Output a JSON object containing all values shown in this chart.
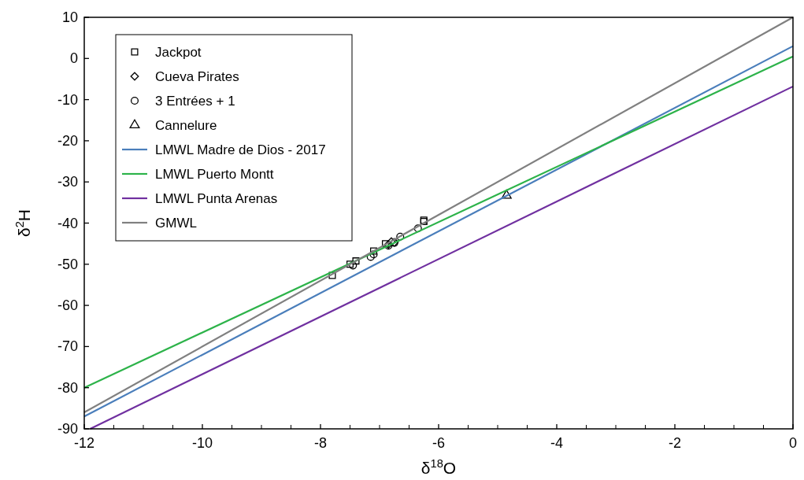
{
  "chart_data": {
    "type": "scatter",
    "xlabel": "δ$^{18}$O",
    "ylabel": "δ$^{2}$H",
    "xlim": [
      -12,
      0
    ],
    "ylim": [
      -90,
      10
    ],
    "xticks": [
      -12,
      -10,
      -8,
      -6,
      -4,
      -2,
      0
    ],
    "yticks": [
      -90,
      -80,
      -70,
      -60,
      -50,
      -40,
      -30,
      -20,
      -10,
      0,
      10
    ],
    "legend": "top left",
    "grid": false,
    "series": [
      {
        "name": "Jackpot",
        "marker": "square",
        "color": "#000000",
        "x": [
          -7.8,
          -7.5,
          -7.4,
          -7.1,
          -6.9,
          -6.25,
          -6.25
        ],
        "values": [
          -52.7,
          -50,
          -49.2,
          -46.8,
          -45,
          -39.3,
          -39.6
        ]
      },
      {
        "name": "Cueva Pirates",
        "marker": "diamond",
        "color": "#000000",
        "x": [
          -6.85,
          -6.75,
          -6.8
        ],
        "values": [
          -45.2,
          -44.7,
          -44.5
        ]
      },
      {
        "name": "3 Entrées + 1",
        "marker": "circle",
        "color": "#000000",
        "x": [
          -7.45,
          -7.15,
          -7.1,
          -6.85,
          -6.75,
          -6.65,
          -6.35
        ],
        "values": [
          -50.3,
          -48.2,
          -47.6,
          -45.5,
          -44.8,
          -43.3,
          -41.3
        ]
      },
      {
        "name": "Cannelure",
        "marker": "triangle",
        "color": "#000000",
        "x": [
          -4.85
        ],
        "values": [
          -33.3
        ]
      },
      {
        "name": "LMWL Madre de Dios - 2017",
        "type": "line",
        "marker": "none",
        "color": "#4a7ebb",
        "x": [
          -12,
          0
        ],
        "values": [
          -87,
          3
        ]
      },
      {
        "name": "LMWL Puerto Montt",
        "type": "line",
        "marker": "none",
        "color": "#2db34a",
        "x": [
          -12,
          0
        ],
        "values": [
          -80,
          0.5
        ]
      },
      {
        "name": "LMWL Punta Arenas",
        "type": "line",
        "marker": "none",
        "color": "#7030a0",
        "x": [
          -11.9,
          0
        ],
        "values": [
          -90,
          -6.8
        ]
      },
      {
        "name": "GMWL",
        "type": "line",
        "marker": "none",
        "color": "#808080",
        "x": [
          -12,
          0
        ],
        "values": [
          -86,
          10
        ]
      }
    ]
  }
}
